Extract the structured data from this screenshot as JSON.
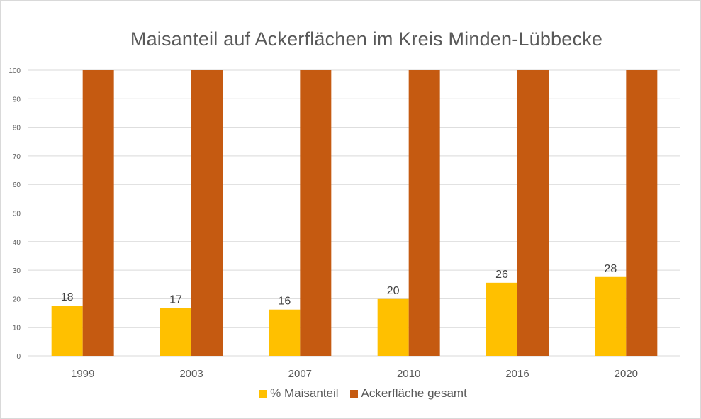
{
  "chart_data": {
    "type": "bar",
    "title": "Maisanteil auf Ackerflächen im Kreis Minden-Lübbecke",
    "xlabel": "",
    "ylabel": "",
    "ylim": [
      0,
      100
    ],
    "yticks": [
      0,
      10,
      20,
      30,
      40,
      50,
      60,
      70,
      80,
      90,
      100
    ],
    "grid": true,
    "legend_position": "bottom",
    "categories": [
      "1999",
      "2003",
      "2007",
      "2010",
      "2016",
      "2020"
    ],
    "series": [
      {
        "name": "% Maisanteil",
        "color": "#FFC000",
        "values": [
          17.6,
          16.7,
          16.2,
          19.9,
          25.6,
          27.6
        ],
        "data_labels": [
          "18",
          "17",
          "16",
          "20",
          "26",
          "28"
        ]
      },
      {
        "name": "Ackerfläche gesamt",
        "color": "#C55A11",
        "values": [
          100,
          100,
          100,
          100,
          100,
          100
        ],
        "data_labels": []
      }
    ]
  }
}
